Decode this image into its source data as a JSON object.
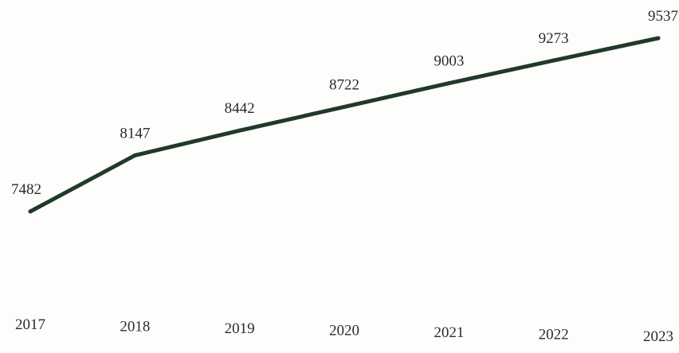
{
  "chart_data": {
    "type": "line",
    "categories": [
      "2017",
      "2018",
      "2019",
      "2020",
      "2021",
      "2022",
      "2023"
    ],
    "series": [
      {
        "values": [
          7482,
          8147,
          8442,
          8722,
          9003,
          9273,
          9537
        ]
      }
    ],
    "data_labels": [
      "7482",
      "8147",
      "8442",
      "8722",
      "9003",
      "9273",
      "9537"
    ],
    "title": "",
    "xlabel": "",
    "ylabel": "",
    "ylim": [
      7000,
      9600
    ],
    "grid": false,
    "legend": "none",
    "colors": {
      "line": "#1f3a2c",
      "text": "#2a2a2a"
    }
  }
}
